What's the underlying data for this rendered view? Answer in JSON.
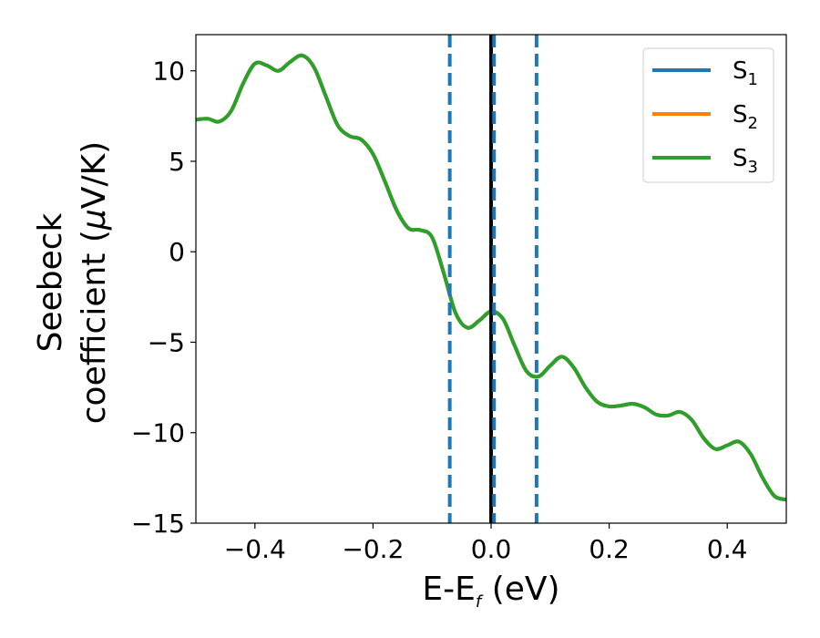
{
  "chart_data": {
    "type": "line",
    "xlabel": {
      "main": "E-E",
      "sub": "f",
      "tail": " (eV)"
    },
    "ylabel": {
      "line1": "Seebeck",
      "line2": "coefficient  (",
      "mu": "μ",
      "line2_tail": "V/K)"
    },
    "xlim": [
      -0.5,
      0.5
    ],
    "ylim": [
      -15,
      12
    ],
    "xticks": [
      -0.4,
      -0.2,
      0.0,
      0.2,
      0.4
    ],
    "xtick_labels": [
      "−0.4",
      "−0.2",
      "0.0",
      "0.2",
      "0.4"
    ],
    "yticks": [
      -15,
      -10,
      -5,
      0,
      5,
      10
    ],
    "ytick_labels": [
      "−15",
      "−10",
      "−5",
      "0",
      "5",
      "10"
    ],
    "grid": false,
    "legend_position": "top-right",
    "colors": {
      "S1": "#1f77b4",
      "S2": "#ff7f0e",
      "S3": "#2ca02c",
      "fermi": "#000000",
      "dashed": "#1f77b4"
    },
    "vertical_lines": [
      {
        "x": 0.0,
        "style": "solid",
        "color": "#000000"
      },
      {
        "x": -0.07,
        "style": "dashed",
        "color": "#1f77b4"
      },
      {
        "x": 0.005,
        "style": "dashed",
        "color": "#1f77b4"
      },
      {
        "x": 0.077,
        "style": "dashed",
        "color": "#1f77b4"
      }
    ],
    "x": [
      -0.5,
      -0.48,
      -0.46,
      -0.44,
      -0.42,
      -0.4,
      -0.38,
      -0.36,
      -0.34,
      -0.32,
      -0.3,
      -0.28,
      -0.26,
      -0.24,
      -0.22,
      -0.2,
      -0.18,
      -0.16,
      -0.14,
      -0.12,
      -0.1,
      -0.08,
      -0.06,
      -0.04,
      -0.02,
      0.0,
      0.02,
      0.04,
      0.06,
      0.08,
      0.1,
      0.12,
      0.14,
      0.16,
      0.18,
      0.2,
      0.22,
      0.24,
      0.26,
      0.28,
      0.3,
      0.32,
      0.34,
      0.36,
      0.38,
      0.4,
      0.42,
      0.44,
      0.46,
      0.48,
      0.5
    ],
    "series": [
      {
        "key": "S1",
        "name": "S",
        "sub": "1",
        "values": [
          7.3,
          7.35,
          7.2,
          7.8,
          9.3,
          10.4,
          10.3,
          10.0,
          10.5,
          10.85,
          10.2,
          8.6,
          7.0,
          6.4,
          6.2,
          5.4,
          3.9,
          2.3,
          1.3,
          1.2,
          0.8,
          -1.2,
          -3.4,
          -4.2,
          -3.8,
          -3.3,
          -3.7,
          -5.2,
          -6.6,
          -6.9,
          -6.3,
          -5.8,
          -6.4,
          -7.5,
          -8.3,
          -8.55,
          -8.5,
          -8.4,
          -8.6,
          -9.0,
          -9.05,
          -8.85,
          -9.3,
          -10.3,
          -10.9,
          -10.7,
          -10.5,
          -11.2,
          -12.5,
          -13.5,
          -13.7
        ]
      },
      {
        "key": "S2",
        "name": "S",
        "sub": "2",
        "values": [
          7.3,
          7.35,
          7.2,
          7.8,
          9.3,
          10.4,
          10.3,
          10.0,
          10.5,
          10.85,
          10.2,
          8.6,
          7.0,
          6.4,
          6.2,
          5.4,
          3.9,
          2.3,
          1.3,
          1.2,
          0.8,
          -1.2,
          -3.4,
          -4.2,
          -3.8,
          -3.3,
          -3.7,
          -5.2,
          -6.6,
          -6.9,
          -6.3,
          -5.8,
          -6.4,
          -7.5,
          -8.3,
          -8.55,
          -8.5,
          -8.4,
          -8.6,
          -9.0,
          -9.05,
          -8.85,
          -9.3,
          -10.3,
          -10.9,
          -10.7,
          -10.5,
          -11.2,
          -12.5,
          -13.5,
          -13.7
        ]
      },
      {
        "key": "S3",
        "name": "S",
        "sub": "3",
        "values": [
          7.3,
          7.35,
          7.2,
          7.8,
          9.3,
          10.4,
          10.3,
          10.0,
          10.5,
          10.85,
          10.2,
          8.6,
          7.0,
          6.4,
          6.2,
          5.4,
          3.9,
          2.3,
          1.3,
          1.2,
          0.8,
          -1.2,
          -3.4,
          -4.2,
          -3.8,
          -3.3,
          -3.7,
          -5.2,
          -6.6,
          -6.9,
          -6.3,
          -5.8,
          -6.4,
          -7.5,
          -8.3,
          -8.55,
          -8.5,
          -8.4,
          -8.6,
          -9.0,
          -9.05,
          -8.85,
          -9.3,
          -10.3,
          -10.9,
          -10.7,
          -10.5,
          -11.2,
          -12.5,
          -13.5,
          -13.7
        ]
      }
    ]
  }
}
